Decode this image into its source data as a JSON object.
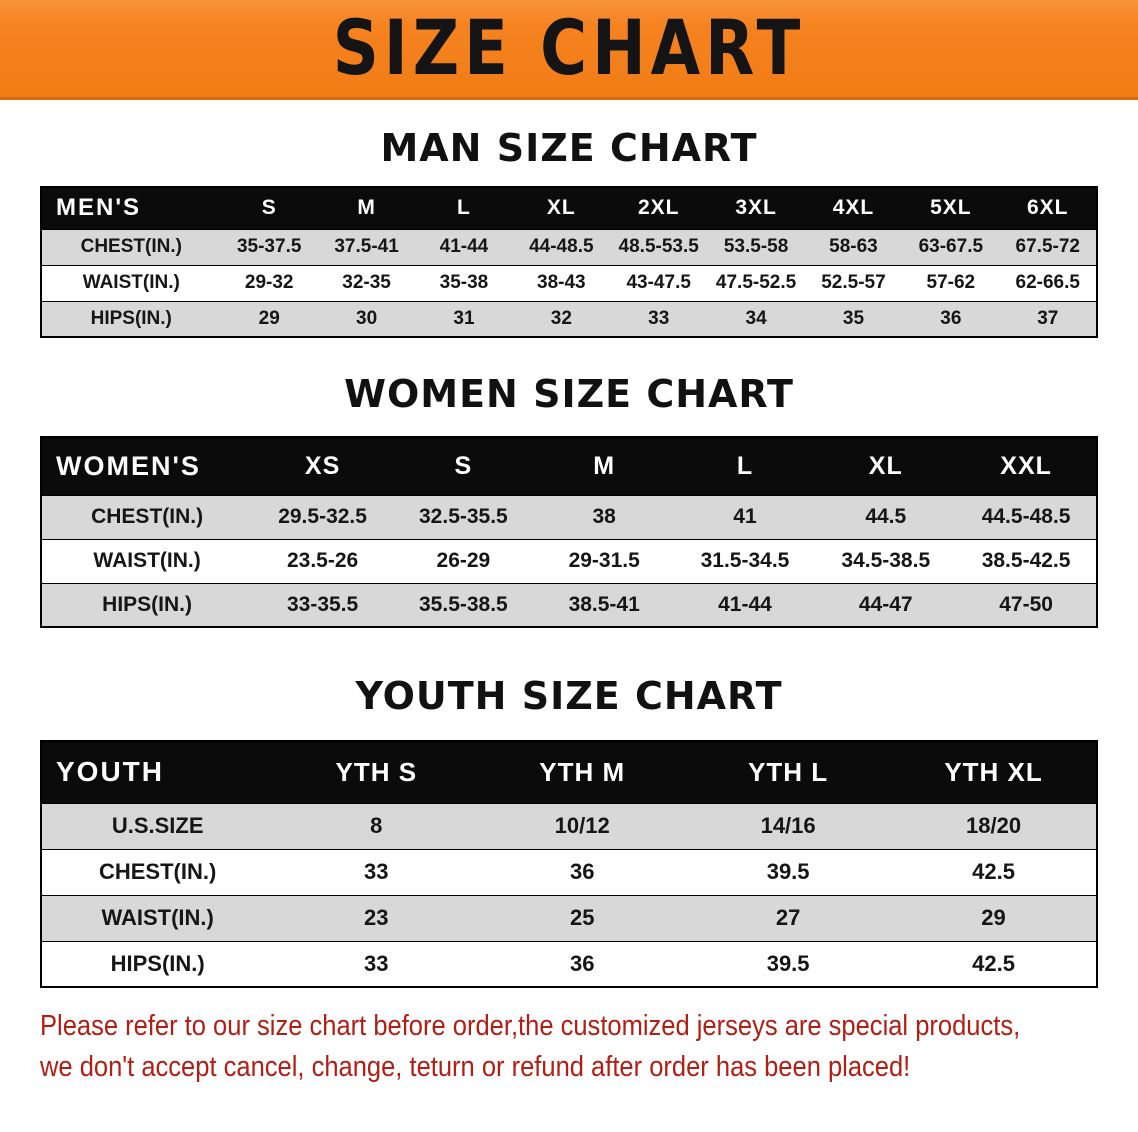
{
  "banner": {
    "title": "SIZE CHART"
  },
  "colors": {
    "banner_bg": "#F5821F",
    "table_header_bg": "#0B0B0B",
    "row_shaded": "#D8D8D8",
    "footer_text": "#B01E14"
  },
  "sections": {
    "men": {
      "heading": "MAN SIZE CHART",
      "table": {
        "headers": [
          "MEN'S",
          "S",
          "M",
          "L",
          "XL",
          "2XL",
          "3XL",
          "4XL",
          "5XL",
          "6XL"
        ],
        "rows": [
          [
            "CHEST(IN.)",
            "35-37.5",
            "37.5-41",
            "41-44",
            "44-48.5",
            "48.5-53.5",
            "53.5-58",
            "58-63",
            "63-67.5",
            "67.5-72"
          ],
          [
            "WAIST(IN.)",
            "29-32",
            "32-35",
            "35-38",
            "38-43",
            "43-47.5",
            "47.5-52.5",
            "52.5-57",
            "57-62",
            "62-66.5"
          ],
          [
            "HIPS(IN.)",
            "29",
            "30",
            "31",
            "32",
            "33",
            "34",
            "35",
            "36",
            "37"
          ]
        ]
      }
    },
    "women": {
      "heading": "WOMEN SIZE CHART",
      "table": {
        "headers": [
          "WOMEN'S",
          "XS",
          "S",
          "M",
          "L",
          "XL",
          "XXL"
        ],
        "rows": [
          [
            "CHEST(IN.)",
            "29.5-32.5",
            "32.5-35.5",
            "38",
            "41",
            "44.5",
            "44.5-48.5"
          ],
          [
            "WAIST(IN.)",
            "23.5-26",
            "26-29",
            "29-31.5",
            "31.5-34.5",
            "34.5-38.5",
            "38.5-42.5"
          ],
          [
            "HIPS(IN.)",
            "33-35.5",
            "35.5-38.5",
            "38.5-41",
            "41-44",
            "44-47",
            "47-50"
          ]
        ]
      }
    },
    "youth": {
      "heading": "YOUTH SIZE CHART",
      "table": {
        "headers": [
          "YOUTH",
          "YTH S",
          "YTH M",
          "YTH L",
          "YTH XL"
        ],
        "rows": [
          [
            "U.S.SIZE",
            "8",
            "10/12",
            "14/16",
            "18/20"
          ],
          [
            "CHEST(IN.)",
            "33",
            "36",
            "39.5",
            "42.5"
          ],
          [
            "WAIST(IN.)",
            "23",
            "25",
            "27",
            "29"
          ],
          [
            "HIPS(IN.)",
            "33",
            "36",
            "39.5",
            "42.5"
          ]
        ]
      }
    }
  },
  "footer": {
    "line1": "Please refer to our size chart before order,the customized jerseys are special products,",
    "line2": "we don't accept cancel, change, teturn or refund after order has been placed!"
  }
}
